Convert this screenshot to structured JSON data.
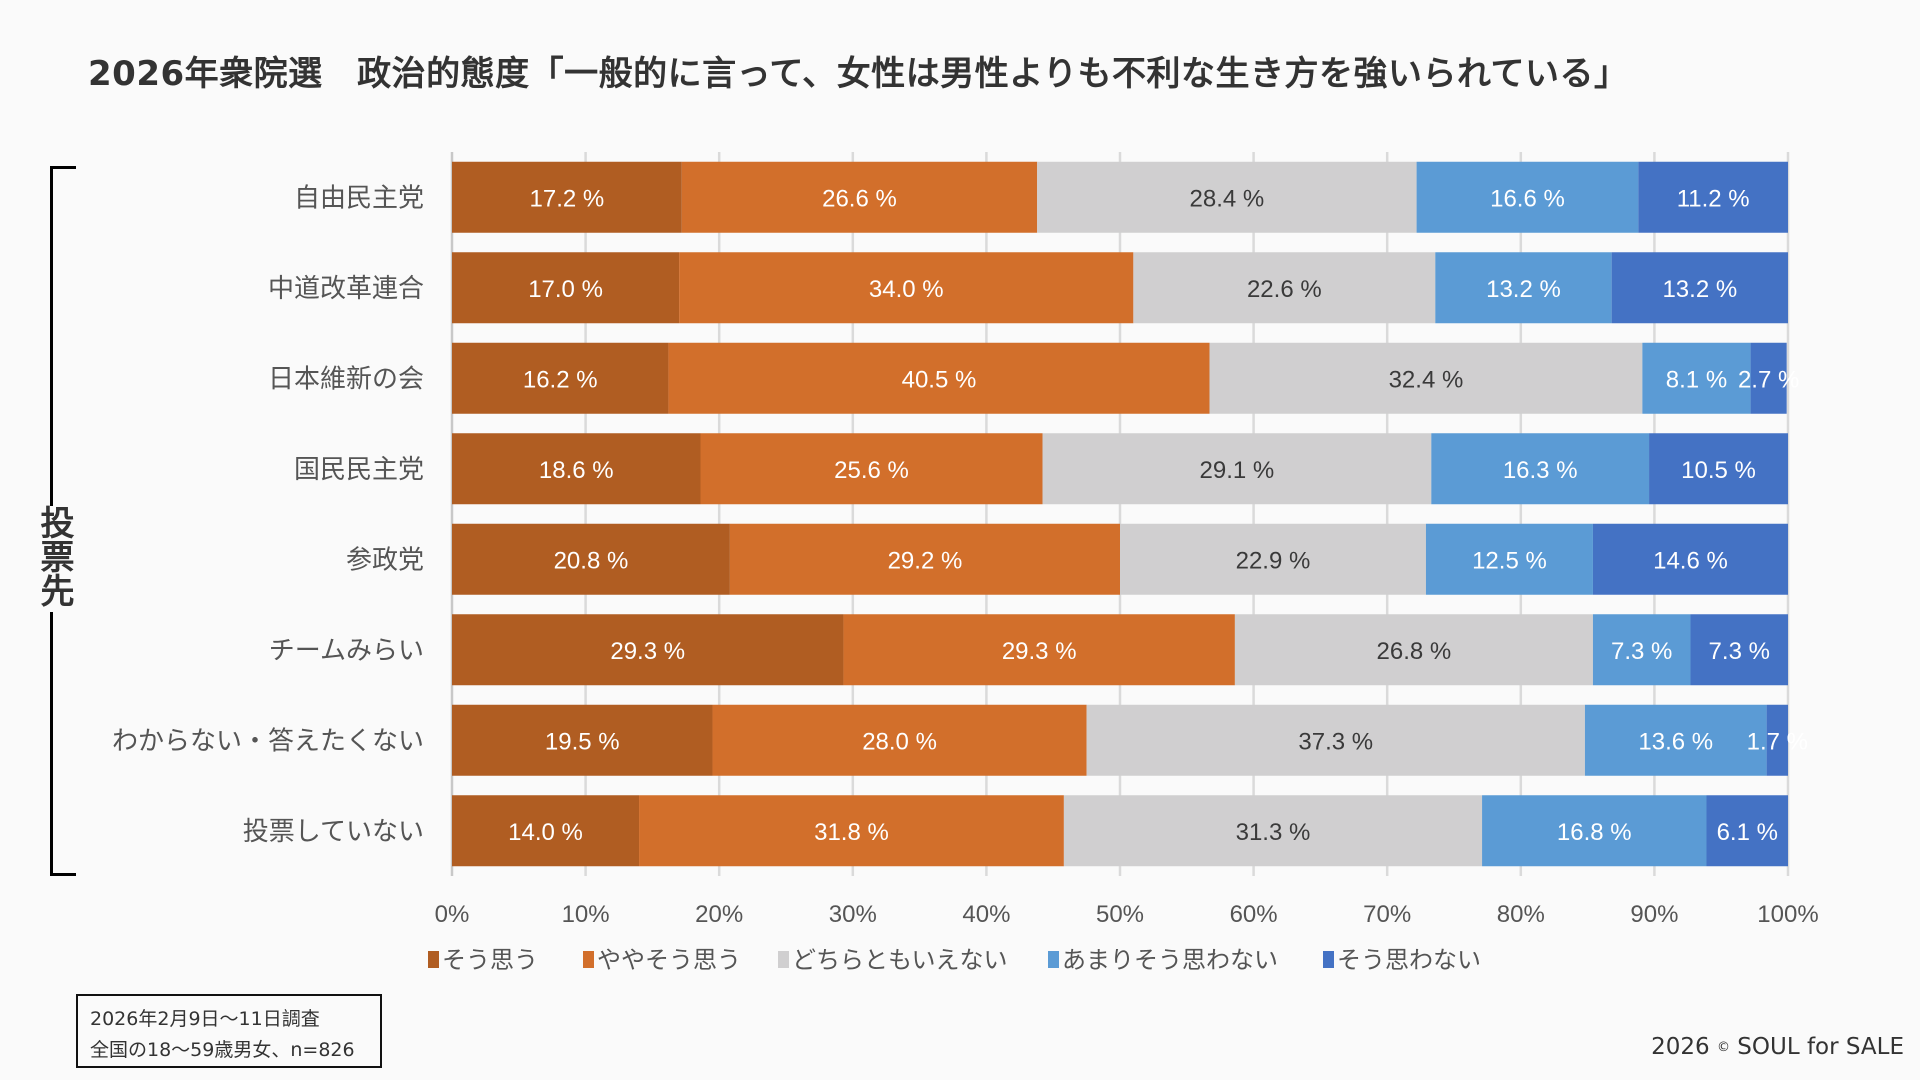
{
  "title": "2026年衆院選　政治的態度「一般的に言って、女性は男性よりも不利な生き方を強いられている」",
  "group_label": "投票先",
  "note": {
    "line1": "2026年2月9日〜11日調査",
    "line2": "全国の18〜59歳男女、n=826"
  },
  "credit": {
    "year": "2026",
    "symbol": "©",
    "owner": "SOUL for SALE"
  },
  "chart_data": {
    "type": "bar",
    "orientation": "horizontal",
    "stacked": "percent",
    "title": "2026年衆院選　政治的態度「一般的に言って、女性は男性よりも不利な生き方を強いられている」",
    "xlabel": "",
    "ylabel": "投票先",
    "xlim": [
      0,
      100
    ],
    "x_ticks": [
      "0%",
      "10%",
      "20%",
      "30%",
      "40%",
      "50%",
      "60%",
      "70%",
      "80%",
      "90%",
      "100%"
    ],
    "grid": true,
    "legend_position": "bottom",
    "categories": [
      "自由民主党",
      "中道改革連合",
      "日本維新の会",
      "国民民主党",
      "参政党",
      "チームみらい",
      "わからない・答えたくない",
      "投票していない"
    ],
    "series": [
      {
        "name": "そう思う",
        "color": "#b05d22",
        "label_color": "#ffffff",
        "values": [
          17.2,
          17.0,
          16.2,
          18.6,
          20.8,
          29.3,
          19.5,
          14.0
        ]
      },
      {
        "name": "ややそう思う",
        "color": "#d26f2b",
        "label_color": "#ffffff",
        "values": [
          26.6,
          34.0,
          40.5,
          25.6,
          29.2,
          29.3,
          28.0,
          31.8
        ]
      },
      {
        "name": "どちらともいえない",
        "color": "#d0cfd0",
        "label_color": "#3a3a3a",
        "values": [
          28.4,
          22.6,
          32.4,
          29.1,
          22.9,
          26.8,
          37.3,
          31.3
        ]
      },
      {
        "name": "あまりそう思わない",
        "color": "#5b9bd5",
        "label_color": "#ffffff",
        "values": [
          16.6,
          13.2,
          8.1,
          16.3,
          12.5,
          7.3,
          13.6,
          16.8
        ]
      },
      {
        "name": "そう思わない",
        "color": "#4472c4",
        "label_color": "#ffffff",
        "values": [
          11.2,
          13.2,
          2.7,
          10.5,
          14.6,
          7.3,
          1.7,
          6.1
        ]
      }
    ],
    "value_format": "{v} %"
  }
}
